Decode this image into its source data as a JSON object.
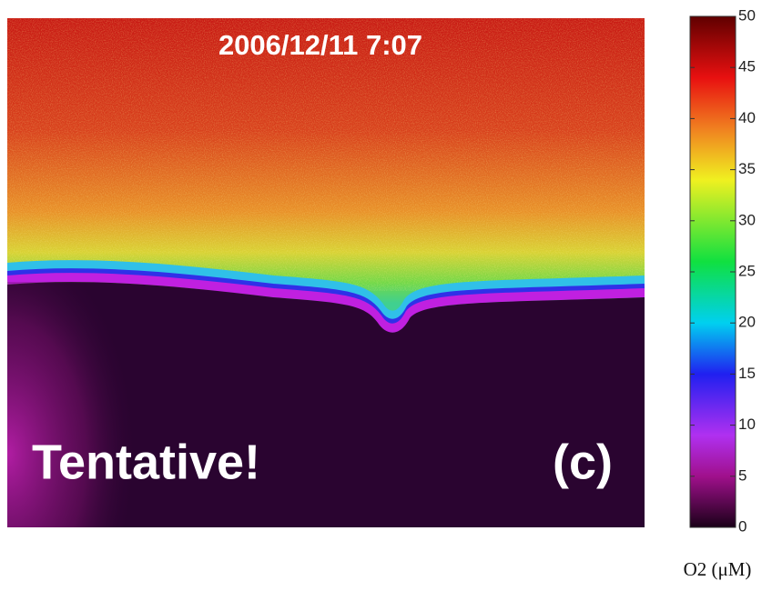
{
  "image": {
    "timestamp": "2006/12/11 7:07",
    "watermark": "Tentative!",
    "panel_label": "(c)"
  },
  "colorbar": {
    "label": "O2 (μM)",
    "lim": [
      0,
      50
    ],
    "ticks": [
      0,
      5,
      10,
      15,
      20,
      25,
      30,
      35,
      40,
      45,
      50
    ]
  }
}
